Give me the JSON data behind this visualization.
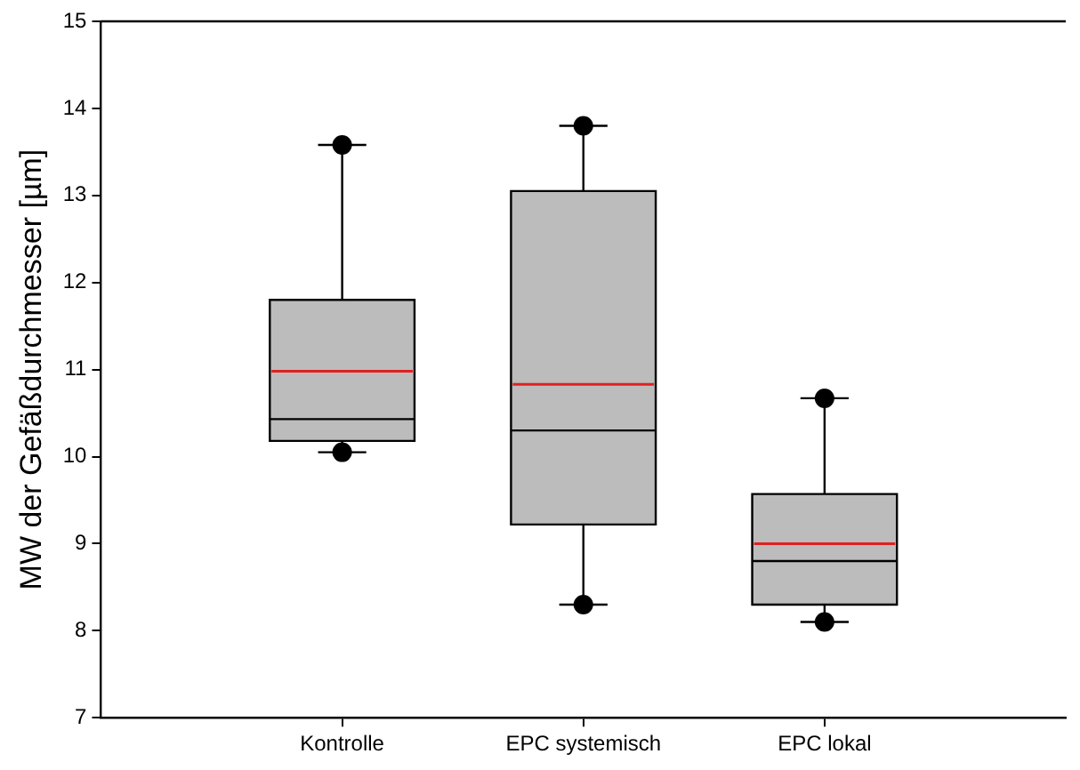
{
  "chart_data": {
    "type": "box",
    "ylabel": "MW der Gefäßdurchmesser [µm]",
    "categories": [
      "Kontrolle",
      "EPC systemisch",
      "EPC lokal"
    ],
    "color": "#bcbcbc",
    "boxes": [
      {
        "low": 10.05,
        "q1": 10.18,
        "median": 10.43,
        "q3": 11.8,
        "high": 13.58,
        "mean": 10.98,
        "outliers": [
          13.58,
          10.05
        ]
      },
      {
        "low": 8.3,
        "q1": 9.22,
        "median": 10.3,
        "q3": 13.05,
        "high": 13.8,
        "mean": 10.83,
        "outliers": [
          13.8,
          8.3
        ]
      },
      {
        "low": 8.1,
        "q1": 8.3,
        "median": 8.8,
        "q3": 9.57,
        "high": 10.67,
        "mean": 9.0,
        "outliers": [
          10.67,
          8.1
        ]
      }
    ],
    "ylim": [
      7,
      15
    ],
    "yticks": [
      7,
      8,
      9,
      10,
      11,
      12,
      13,
      14,
      15
    ],
    "grid": false,
    "legend": false,
    "marker": "circle"
  }
}
